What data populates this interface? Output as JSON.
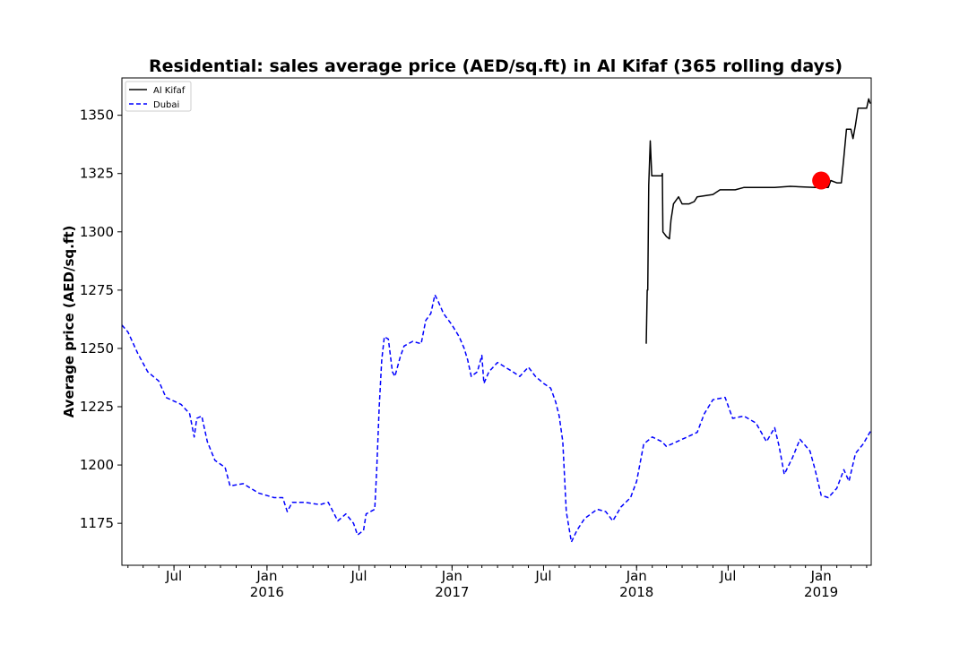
{
  "chart_data": {
    "type": "line",
    "title": "Residential: sales average price (AED/sq.ft) in Al Kifaf (365 rolling days)",
    "ylabel": "Average price (AED/sq.ft)",
    "xlabel": "",
    "xlim": [
      "2015-03-20",
      "2019-04-10"
    ],
    "ylim": [
      1157,
      1366
    ],
    "yticks": [
      1175,
      1200,
      1225,
      1250,
      1275,
      1300,
      1325,
      1350
    ],
    "xticks": [
      {
        "date": "2015-07-01",
        "label": "Jul",
        "sub": ""
      },
      {
        "date": "2016-01-01",
        "label": "Jan",
        "sub": "2016"
      },
      {
        "date": "2016-07-01",
        "label": "Jul",
        "sub": ""
      },
      {
        "date": "2017-01-01",
        "label": "Jan",
        "sub": "2017"
      },
      {
        "date": "2017-07-01",
        "label": "Jul",
        "sub": ""
      },
      {
        "date": "2018-01-01",
        "label": "Jan",
        "sub": "2018"
      },
      {
        "date": "2018-07-01",
        "label": "Jul",
        "sub": ""
      },
      {
        "date": "2019-01-01",
        "label": "Jan",
        "sub": "2019"
      }
    ],
    "legend": {
      "position": "top-left"
    },
    "series": [
      {
        "name": "Al Kifaf",
        "color": "#000000",
        "style": "solid",
        "points": [
          [
            "2018-01-20",
            1252
          ],
          [
            "2018-01-22",
            1275
          ],
          [
            "2018-01-23",
            1275
          ],
          [
            "2018-01-25",
            1320
          ],
          [
            "2018-01-28",
            1339
          ],
          [
            "2018-01-31",
            1324
          ],
          [
            "2018-02-20",
            1324
          ],
          [
            "2018-02-21",
            1325
          ],
          [
            "2018-02-22",
            1300
          ],
          [
            "2018-03-01",
            1298
          ],
          [
            "2018-03-07",
            1297
          ],
          [
            "2018-03-10",
            1305
          ],
          [
            "2018-03-15",
            1312
          ],
          [
            "2018-03-25",
            1315
          ],
          [
            "2018-04-01",
            1312
          ],
          [
            "2018-04-15",
            1312
          ],
          [
            "2018-04-25",
            1313
          ],
          [
            "2018-05-01",
            1315
          ],
          [
            "2018-06-01",
            1316
          ],
          [
            "2018-06-15",
            1318
          ],
          [
            "2018-07-15",
            1318
          ],
          [
            "2018-08-01",
            1319
          ],
          [
            "2018-10-01",
            1319
          ],
          [
            "2018-11-01",
            1319.5
          ],
          [
            "2018-12-20",
            1319
          ],
          [
            "2019-01-01",
            1319
          ],
          [
            "2019-01-15",
            1319
          ],
          [
            "2019-01-20",
            1322
          ],
          [
            "2019-02-01",
            1321
          ],
          [
            "2019-02-10",
            1321
          ],
          [
            "2019-02-15",
            1332
          ],
          [
            "2019-02-20",
            1344
          ],
          [
            "2019-03-01",
            1344
          ],
          [
            "2019-03-05",
            1340
          ],
          [
            "2019-03-10",
            1346
          ],
          [
            "2019-03-15",
            1353
          ],
          [
            "2019-04-01",
            1353
          ],
          [
            "2019-04-05",
            1357
          ],
          [
            "2019-04-08",
            1355
          ]
        ]
      },
      {
        "name": "Dubai",
        "color": "#0000ff",
        "style": "dashed",
        "points": [
          [
            "2015-03-20",
            1260
          ],
          [
            "2015-04-01",
            1257
          ],
          [
            "2015-04-20",
            1248
          ],
          [
            "2015-05-10",
            1240
          ],
          [
            "2015-06-01",
            1236
          ],
          [
            "2015-06-15",
            1229
          ],
          [
            "2015-07-15",
            1226
          ],
          [
            "2015-08-01",
            1222
          ],
          [
            "2015-08-10",
            1212
          ],
          [
            "2015-08-15",
            1220
          ],
          [
            "2015-08-25",
            1221
          ],
          [
            "2015-09-05",
            1210
          ],
          [
            "2015-09-20",
            1202
          ],
          [
            "2015-10-10",
            1199
          ],
          [
            "2015-10-20",
            1191
          ],
          [
            "2015-11-15",
            1192
          ],
          [
            "2015-12-15",
            1188
          ],
          [
            "2016-01-15",
            1186
          ],
          [
            "2016-02-01",
            1186
          ],
          [
            "2016-02-10",
            1180
          ],
          [
            "2016-02-20",
            1184
          ],
          [
            "2016-03-15",
            1184
          ],
          [
            "2016-04-15",
            1183
          ],
          [
            "2016-05-01",
            1184
          ],
          [
            "2016-05-20",
            1176
          ],
          [
            "2016-06-05",
            1179
          ],
          [
            "2016-06-20",
            1175
          ],
          [
            "2016-06-28",
            1170
          ],
          [
            "2016-07-10",
            1172
          ],
          [
            "2016-07-15",
            1179
          ],
          [
            "2016-08-01",
            1181
          ],
          [
            "2016-08-05",
            1198
          ],
          [
            "2016-08-10",
            1225
          ],
          [
            "2016-08-15",
            1245
          ],
          [
            "2016-08-20",
            1255
          ],
          [
            "2016-08-28",
            1254
          ],
          [
            "2016-09-05",
            1240
          ],
          [
            "2016-09-10",
            1238
          ],
          [
            "2016-09-20",
            1246
          ],
          [
            "2016-09-28",
            1251
          ],
          [
            "2016-10-15",
            1253
          ],
          [
            "2016-11-01",
            1252
          ],
          [
            "2016-11-10",
            1262
          ],
          [
            "2016-11-20",
            1265
          ],
          [
            "2016-11-28",
            1273
          ],
          [
            "2016-12-05",
            1270
          ],
          [
            "2016-12-15",
            1265
          ],
          [
            "2017-01-01",
            1260
          ],
          [
            "2017-01-15",
            1255
          ],
          [
            "2017-01-25",
            1250
          ],
          [
            "2017-02-01",
            1245
          ],
          [
            "2017-02-08",
            1238
          ],
          [
            "2017-02-20",
            1240
          ],
          [
            "2017-03-01",
            1247
          ],
          [
            "2017-03-05",
            1235
          ],
          [
            "2017-03-15",
            1240
          ],
          [
            "2017-04-01",
            1244
          ],
          [
            "2017-05-01",
            1240
          ],
          [
            "2017-05-15",
            1238
          ],
          [
            "2017-06-01",
            1242
          ],
          [
            "2017-06-15",
            1238
          ],
          [
            "2017-07-01",
            1235
          ],
          [
            "2017-07-15",
            1233
          ],
          [
            "2017-07-25",
            1227
          ],
          [
            "2017-08-01",
            1221
          ],
          [
            "2017-08-08",
            1210
          ],
          [
            "2017-08-15",
            1180
          ],
          [
            "2017-08-25",
            1167
          ],
          [
            "2017-09-05",
            1172
          ],
          [
            "2017-09-20",
            1177
          ],
          [
            "2017-10-15",
            1181
          ],
          [
            "2017-11-01",
            1180
          ],
          [
            "2017-11-15",
            1176
          ],
          [
            "2017-12-01",
            1182
          ],
          [
            "2017-12-20",
            1186
          ],
          [
            "2018-01-01",
            1193
          ],
          [
            "2018-01-15",
            1209
          ],
          [
            "2018-02-01",
            1212
          ],
          [
            "2018-02-20",
            1210
          ],
          [
            "2018-03-01",
            1208
          ],
          [
            "2018-04-01",
            1211
          ],
          [
            "2018-05-01",
            1214
          ],
          [
            "2018-05-15",
            1222
          ],
          [
            "2018-06-01",
            1228
          ],
          [
            "2018-06-25",
            1229
          ],
          [
            "2018-07-10",
            1220
          ],
          [
            "2018-08-01",
            1221
          ],
          [
            "2018-08-25",
            1218
          ],
          [
            "2018-09-15",
            1210
          ],
          [
            "2018-10-01",
            1216
          ],
          [
            "2018-10-10",
            1208
          ],
          [
            "2018-10-20",
            1196
          ],
          [
            "2018-11-05",
            1203
          ],
          [
            "2018-11-20",
            1211
          ],
          [
            "2018-12-10",
            1206
          ],
          [
            "2018-12-20",
            1198
          ],
          [
            "2019-01-01",
            1187
          ],
          [
            "2019-01-15",
            1186
          ],
          [
            "2019-02-01",
            1190
          ],
          [
            "2019-02-15",
            1198
          ],
          [
            "2019-02-25",
            1193
          ],
          [
            "2019-03-10",
            1205
          ],
          [
            "2019-03-25",
            1209
          ],
          [
            "2019-04-10",
            1215
          ]
        ]
      }
    ],
    "annotations": [
      {
        "type": "marker",
        "shape": "circle",
        "color": "#ff0000",
        "date": "2019-01-01",
        "value": 1322
      }
    ]
  }
}
